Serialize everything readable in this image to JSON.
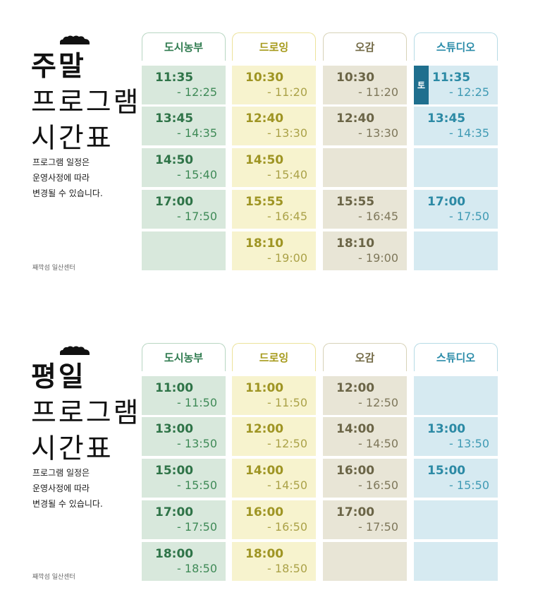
{
  "colors": {
    "farm": {
      "head": "#2f7b4f",
      "border": "#b8d6c2",
      "cell": "#d8e8dc",
      "start": "#2f7448",
      "end": "#3f8a57"
    },
    "droing": {
      "head": "#a69a1b",
      "border": "#ece29a",
      "cell": "#f7f3ce",
      "start": "#9f9524",
      "end": "#aba248"
    },
    "ogam": {
      "head": "#736a45",
      "border": "#d7d2b8",
      "cell": "#e8e5d6",
      "start": "#6b6547",
      "end": "#7e775a"
    },
    "studio": {
      "head": "#2b8ca9",
      "border": "#b6dbe5",
      "cell": "#d6eaf1",
      "start": "#2c8aa5",
      "end": "#3f9ab4",
      "badge": "#1f6f8e"
    }
  },
  "weekend": {
    "title": [
      "주말",
      "프로그램",
      "시간표"
    ],
    "note": [
      "프로그램 일정은",
      "운영사정에 따라",
      "변경될 수 있습니다."
    ],
    "footer": "째깍섬 일산센터",
    "columns": [
      {
        "name": "도시농부",
        "slots": [
          {
            "start": "11:35",
            "end": "- 12:25"
          },
          {
            "start": "13:45",
            "end": "- 14:35"
          },
          {
            "start": "14:50",
            "end": "- 15:40"
          },
          {
            "start": "17:00",
            "end": "- 17:50"
          },
          {
            "start": "",
            "end": ""
          }
        ]
      },
      {
        "name": "드로잉",
        "slots": [
          {
            "start": "10:30",
            "end": "- 11:20"
          },
          {
            "start": "12:40",
            "end": "- 13:30"
          },
          {
            "start": "14:50",
            "end": "- 15:40"
          },
          {
            "start": "15:55",
            "end": "- 16:45"
          },
          {
            "start": "18:10",
            "end": "- 19:00"
          }
        ]
      },
      {
        "name": "오감",
        "slots": [
          {
            "start": "10:30",
            "end": "- 11:20"
          },
          {
            "start": "12:40",
            "end": "- 13:30"
          },
          {
            "start": "",
            "end": ""
          },
          {
            "start": "15:55",
            "end": "- 16:45"
          },
          {
            "start": "18:10",
            "end": "- 19:00"
          }
        ]
      },
      {
        "name": "스튜디오",
        "slots": [
          {
            "start": "11:35",
            "end": "- 12:25",
            "badge": "토"
          },
          {
            "start": "13:45",
            "end": "- 14:35"
          },
          {
            "start": "",
            "end": ""
          },
          {
            "start": "17:00",
            "end": "- 17:50"
          },
          {
            "start": "",
            "end": ""
          }
        ]
      }
    ]
  },
  "weekday": {
    "title": [
      "평일",
      "프로그램",
      "시간표"
    ],
    "note": [
      "프로그램 일정은",
      "운영사정에 따라",
      "변경될 수 있습니다."
    ],
    "footer": "째깍섬 일산센터",
    "columns": [
      {
        "name": "도시농부",
        "slots": [
          {
            "start": "11:00",
            "end": "- 11:50"
          },
          {
            "start": "13:00",
            "end": "- 13:50"
          },
          {
            "start": "15:00",
            "end": "- 15:50"
          },
          {
            "start": "17:00",
            "end": "- 17:50"
          },
          {
            "start": "18:00",
            "end": "- 18:50"
          }
        ]
      },
      {
        "name": "드로잉",
        "slots": [
          {
            "start": "11:00",
            "end": "- 11:50"
          },
          {
            "start": "12:00",
            "end": "- 12:50"
          },
          {
            "start": "14:00",
            "end": "- 14:50"
          },
          {
            "start": "16:00",
            "end": "- 16:50"
          },
          {
            "start": "18:00",
            "end": "- 18:50"
          }
        ]
      },
      {
        "name": "오감",
        "slots": [
          {
            "start": "12:00",
            "end": "- 12:50"
          },
          {
            "start": "14:00",
            "end": "- 14:50"
          },
          {
            "start": "16:00",
            "end": "- 16:50"
          },
          {
            "start": "17:00",
            "end": "- 17:50"
          },
          {
            "start": "",
            "end": ""
          }
        ]
      },
      {
        "name": "스튜디오",
        "slots": [
          {
            "start": "",
            "end": ""
          },
          {
            "start": "13:00",
            "end": "- 13:50"
          },
          {
            "start": "15:00",
            "end": "- 15:50"
          },
          {
            "start": "",
            "end": ""
          },
          {
            "start": "",
            "end": ""
          }
        ]
      }
    ]
  }
}
